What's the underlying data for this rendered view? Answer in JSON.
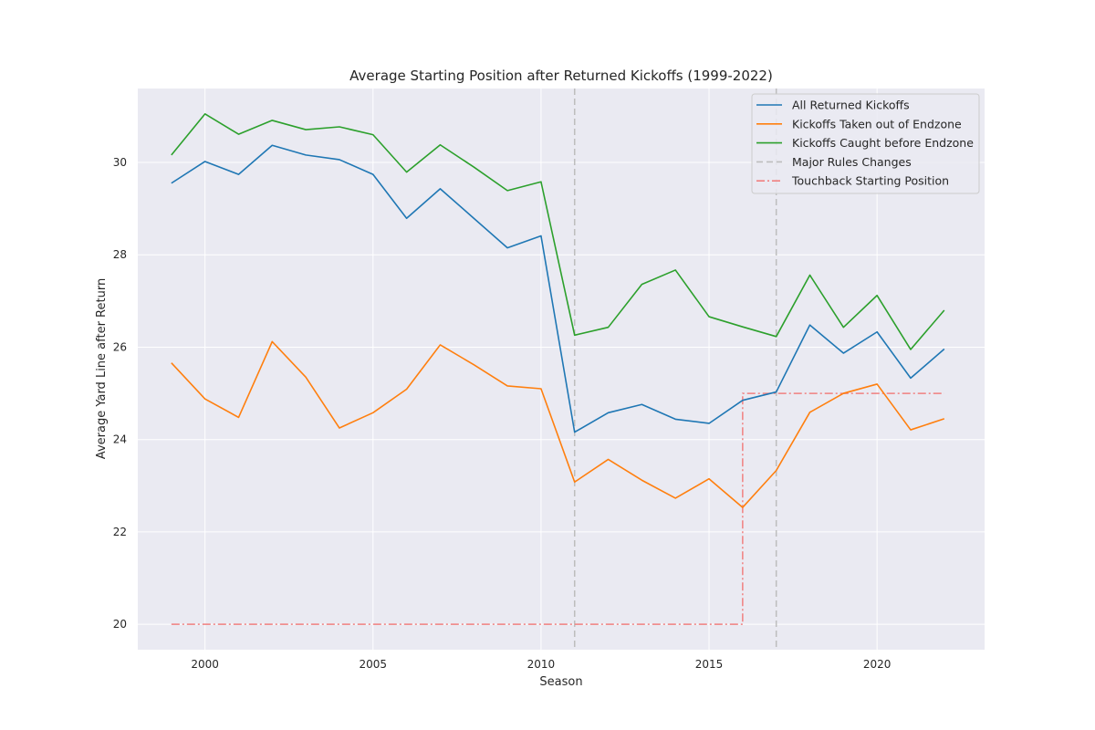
{
  "chart_data": {
    "type": "line",
    "title": "Average Starting Position after Returned Kickoffs (1999-2022)",
    "xlabel": "Season",
    "ylabel": "Average Yard Line after Return",
    "xlim": [
      1998,
      2023.2
    ],
    "ylim": [
      19.45,
      31.6
    ],
    "xticks": [
      2000,
      2005,
      2010,
      2015,
      2020
    ],
    "yticks": [
      20,
      22,
      24,
      26,
      28,
      30
    ],
    "grid": true,
    "legend_position": "top-right",
    "x": [
      1999,
      2000,
      2001,
      2002,
      2003,
      2004,
      2005,
      2006,
      2007,
      2008,
      2009,
      2010,
      2011,
      2012,
      2013,
      2014,
      2015,
      2016,
      2017,
      2018,
      2019,
      2020,
      2021,
      2022
    ],
    "series": [
      {
        "name": "All Returned Kickoffs",
        "color": "#1f77b4",
        "style": "solid",
        "values": [
          29.55,
          30.02,
          29.74,
          30.37,
          30.16,
          30.06,
          29.74,
          28.79,
          29.43,
          28.79,
          28.15,
          28.41,
          24.16,
          24.58,
          24.76,
          24.44,
          24.35,
          24.85,
          25.03,
          26.48,
          25.87,
          26.33,
          25.33,
          25.96
        ]
      },
      {
        "name": "Kickoffs Taken out of Endzone",
        "color": "#ff7f0e",
        "style": "solid",
        "values": [
          25.66,
          24.88,
          24.48,
          26.12,
          25.35,
          24.25,
          24.58,
          25.09,
          26.05,
          25.62,
          25.16,
          25.1,
          23.08,
          23.57,
          23.12,
          22.73,
          23.15,
          22.53,
          23.33,
          24.59,
          25.0,
          25.2,
          24.21,
          24.45
        ]
      },
      {
        "name": "Kickoffs Caught before Endzone",
        "color": "#2ca02c",
        "style": "solid",
        "values": [
          30.16,
          31.05,
          30.61,
          30.91,
          30.71,
          30.77,
          30.6,
          29.79,
          30.38,
          29.9,
          29.39,
          29.58,
          26.26,
          26.43,
          27.36,
          27.67,
          26.66,
          26.44,
          26.23,
          27.56,
          26.43,
          27.12,
          25.95,
          26.8
        ]
      }
    ],
    "rule_changes": {
      "name": "Major Rules Changes",
      "color": "#bdbdbd",
      "style": "dashed",
      "x": [
        2011,
        2017
      ]
    },
    "touchback": {
      "name": "Touchback Starting Position",
      "color": "#f08080",
      "style": "dashdot",
      "points": [
        [
          1999,
          20
        ],
        [
          2016,
          20
        ],
        [
          2016,
          25
        ],
        [
          2022,
          25
        ]
      ]
    }
  }
}
